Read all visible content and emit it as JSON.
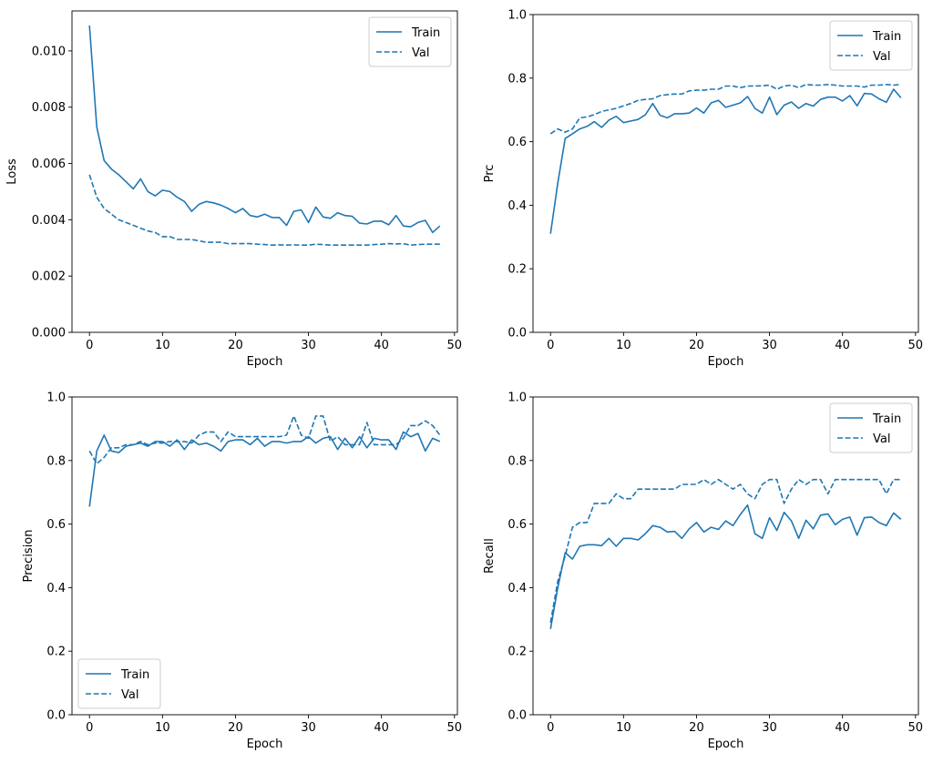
{
  "colors": {
    "series": "#1f77b4",
    "axis": "#000000",
    "legend_border": "#cccccc"
  },
  "chart_data": [
    {
      "type": "line",
      "title": "",
      "xlabel": "Epoch",
      "ylabel": "Loss",
      "xlim": [
        -2.4,
        50.4
      ],
      "ylim": [
        0,
        0.01142
      ],
      "xticks": [
        0,
        10,
        20,
        30,
        40,
        50
      ],
      "yticks": [
        0,
        0.002,
        0.004,
        0.006,
        0.008,
        0.01
      ],
      "ytick_labels": [
        "0.000",
        "0.002",
        "0.004",
        "0.006",
        "0.008",
        "0.010"
      ],
      "legend": "upper-right",
      "grid": false,
      "series": [
        {
          "name": "Train",
          "style": "solid",
          "values": [
            0.0109,
            0.0073,
            0.0061,
            0.0058,
            0.0056,
            0.00535,
            0.0051,
            0.00545,
            0.005,
            0.00485,
            0.00505,
            0.005,
            0.0048,
            0.00465,
            0.0043,
            0.00455,
            0.00465,
            0.0046,
            0.00452,
            0.0044,
            0.00425,
            0.0044,
            0.00415,
            0.0041,
            0.0042,
            0.00408,
            0.00408,
            0.0038,
            0.0043,
            0.00435,
            0.0039,
            0.00445,
            0.0041,
            0.00405,
            0.00425,
            0.00415,
            0.00412,
            0.00388,
            0.00385,
            0.00395,
            0.00395,
            0.00382,
            0.00415,
            0.00378,
            0.00375,
            0.0039,
            0.00398,
            0.00355,
            0.00378
          ]
        },
        {
          "name": "Val",
          "style": "dashed",
          "values": [
            0.0056,
            0.0048,
            0.0044,
            0.0042,
            0.004,
            0.0039,
            0.0038,
            0.0037,
            0.0036,
            0.00355,
            0.0034,
            0.0034,
            0.0033,
            0.0033,
            0.0033,
            0.00325,
            0.0032,
            0.0032,
            0.0032,
            0.00315,
            0.00315,
            0.00315,
            0.00315,
            0.00313,
            0.00312,
            0.0031,
            0.00311,
            0.0031,
            0.00311,
            0.0031,
            0.0031,
            0.00313,
            0.00312,
            0.0031,
            0.0031,
            0.0031,
            0.0031,
            0.0031,
            0.0031,
            0.00312,
            0.00313,
            0.00315,
            0.00314,
            0.00315,
            0.0031,
            0.00312,
            0.00313,
            0.00313,
            0.00313
          ]
        }
      ]
    },
    {
      "type": "line",
      "title": "",
      "xlabel": "Epoch",
      "ylabel": "Prc",
      "xlim": [
        -2.4,
        50.4
      ],
      "ylim": [
        0,
        1
      ],
      "xticks": [
        0,
        10,
        20,
        30,
        40,
        50
      ],
      "yticks": [
        0,
        0.2,
        0.4,
        0.6,
        0.8,
        1.0
      ],
      "ytick_labels": [
        "0.0",
        "0.2",
        "0.4",
        "0.6",
        "0.8",
        "1.0"
      ],
      "legend": "upper-right",
      "grid": false,
      "series": [
        {
          "name": "Train",
          "style": "solid",
          "values": [
            0.31,
            0.47,
            0.61,
            0.625,
            0.64,
            0.648,
            0.663,
            0.645,
            0.668,
            0.68,
            0.66,
            0.665,
            0.67,
            0.685,
            0.72,
            0.683,
            0.675,
            0.688,
            0.688,
            0.69,
            0.706,
            0.69,
            0.722,
            0.73,
            0.708,
            0.715,
            0.722,
            0.742,
            0.705,
            0.69,
            0.74,
            0.685,
            0.715,
            0.725,
            0.705,
            0.72,
            0.712,
            0.733,
            0.74,
            0.74,
            0.728,
            0.745,
            0.713,
            0.752,
            0.75,
            0.735,
            0.724,
            0.765,
            0.738
          ]
        },
        {
          "name": "Val",
          "style": "dashed",
          "values": [
            0.625,
            0.64,
            0.63,
            0.64,
            0.675,
            0.678,
            0.685,
            0.695,
            0.7,
            0.705,
            0.713,
            0.72,
            0.73,
            0.733,
            0.735,
            0.745,
            0.748,
            0.75,
            0.75,
            0.76,
            0.762,
            0.762,
            0.765,
            0.765,
            0.775,
            0.775,
            0.77,
            0.775,
            0.775,
            0.776,
            0.778,
            0.765,
            0.775,
            0.778,
            0.77,
            0.78,
            0.778,
            0.778,
            0.78,
            0.778,
            0.775,
            0.775,
            0.775,
            0.772,
            0.778,
            0.778,
            0.78,
            0.778,
            0.78
          ]
        }
      ]
    },
    {
      "type": "line",
      "title": "",
      "xlabel": "Epoch",
      "ylabel": "Precision",
      "xlim": [
        -2.4,
        50.4
      ],
      "ylim": [
        0,
        1
      ],
      "xticks": [
        0,
        10,
        20,
        30,
        40,
        50
      ],
      "yticks": [
        0,
        0.2,
        0.4,
        0.6,
        0.8,
        1.0
      ],
      "ytick_labels": [
        "0.0",
        "0.2",
        "0.4",
        "0.6",
        "0.8",
        "1.0"
      ],
      "legend": "lower-left",
      "grid": false,
      "series": [
        {
          "name": "Train",
          "style": "solid",
          "values": [
            0.655,
            0.83,
            0.88,
            0.83,
            0.825,
            0.845,
            0.85,
            0.855,
            0.845,
            0.86,
            0.86,
            0.845,
            0.865,
            0.835,
            0.865,
            0.85,
            0.855,
            0.845,
            0.83,
            0.86,
            0.865,
            0.865,
            0.85,
            0.87,
            0.845,
            0.86,
            0.86,
            0.855,
            0.86,
            0.86,
            0.875,
            0.855,
            0.87,
            0.875,
            0.835,
            0.87,
            0.84,
            0.875,
            0.84,
            0.87,
            0.865,
            0.865,
            0.835,
            0.89,
            0.875,
            0.885,
            0.83,
            0.87,
            0.86
          ]
        },
        {
          "name": "Val",
          "style": "dashed",
          "values": [
            0.83,
            0.79,
            0.81,
            0.84,
            0.84,
            0.85,
            0.85,
            0.86,
            0.85,
            0.855,
            0.855,
            0.86,
            0.86,
            0.86,
            0.855,
            0.88,
            0.89,
            0.89,
            0.86,
            0.89,
            0.875,
            0.875,
            0.875,
            0.875,
            0.875,
            0.875,
            0.875,
            0.88,
            0.94,
            0.88,
            0.87,
            0.94,
            0.94,
            0.86,
            0.875,
            0.85,
            0.85,
            0.85,
            0.92,
            0.85,
            0.85,
            0.85,
            0.85,
            0.87,
            0.91,
            0.91,
            0.925,
            0.91,
            0.88
          ]
        }
      ]
    },
    {
      "type": "line",
      "title": "",
      "xlabel": "Epoch",
      "ylabel": "Recall",
      "xlim": [
        -2.4,
        50.4
      ],
      "ylim": [
        0,
        1
      ],
      "xticks": [
        0,
        10,
        20,
        30,
        40,
        50
      ],
      "yticks": [
        0,
        0.2,
        0.4,
        0.6,
        0.8,
        1.0
      ],
      "ytick_labels": [
        "0.0",
        "0.2",
        "0.4",
        "0.6",
        "0.8",
        "1.0"
      ],
      "legend": "upper-right",
      "grid": false,
      "series": [
        {
          "name": "Train",
          "style": "solid",
          "values": [
            0.27,
            0.4,
            0.51,
            0.49,
            0.53,
            0.535,
            0.535,
            0.532,
            0.555,
            0.53,
            0.555,
            0.555,
            0.55,
            0.57,
            0.595,
            0.59,
            0.575,
            0.577,
            0.555,
            0.585,
            0.605,
            0.575,
            0.59,
            0.583,
            0.61,
            0.595,
            0.63,
            0.66,
            0.57,
            0.555,
            0.62,
            0.58,
            0.637,
            0.61,
            0.555,
            0.612,
            0.585,
            0.628,
            0.632,
            0.598,
            0.615,
            0.622,
            0.565,
            0.62,
            0.622,
            0.605,
            0.595,
            0.635,
            0.615
          ]
        },
        {
          "name": "Val",
          "style": "dashed",
          "values": [
            0.29,
            0.42,
            0.5,
            0.59,
            0.605,
            0.605,
            0.665,
            0.665,
            0.665,
            0.695,
            0.68,
            0.68,
            0.71,
            0.71,
            0.71,
            0.71,
            0.71,
            0.71,
            0.725,
            0.725,
            0.725,
            0.74,
            0.725,
            0.74,
            0.725,
            0.71,
            0.725,
            0.695,
            0.68,
            0.725,
            0.74,
            0.74,
            0.665,
            0.71,
            0.74,
            0.725,
            0.74,
            0.74,
            0.695,
            0.74,
            0.74,
            0.74,
            0.74,
            0.74,
            0.74,
            0.74,
            0.695,
            0.74,
            0.74
          ]
        }
      ]
    }
  ]
}
